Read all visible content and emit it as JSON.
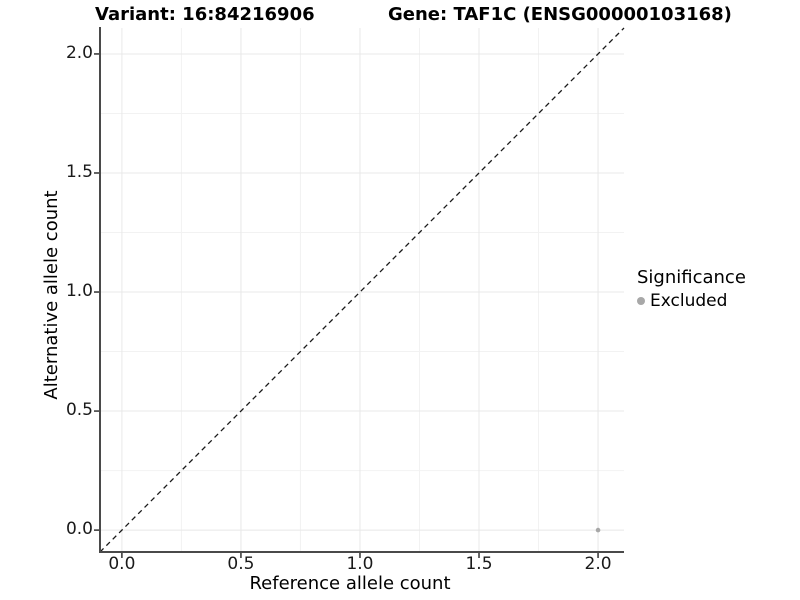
{
  "chart_data": {
    "type": "scatter",
    "title_left": "Variant: 16:84216906",
    "title_right": "Gene: TAF1C (ENSG00000103168)",
    "xlabel": "Reference allele count",
    "ylabel": "Alternative allele count",
    "xlim": [
      -0.092,
      2.109
    ],
    "ylim": [
      -0.092,
      2.109
    ],
    "x_ticks": [
      0,
      0.5,
      1,
      1.5,
      2
    ],
    "x_tick_labels": [
      "0.0",
      "0.5",
      "1.0",
      "1.5",
      "2.0"
    ],
    "y_ticks": [
      0,
      0.5,
      1,
      1.5,
      2
    ],
    "y_tick_labels": [
      "0.0",
      "0.5",
      "1.0",
      "1.5",
      "2.0"
    ],
    "x_minor_ticks": [
      0.25,
      0.75,
      1.25,
      1.75
    ],
    "y_minor_ticks": [
      0.25,
      0.75,
      1.25,
      1.75
    ],
    "grid": "major and minor, light grey, on white background",
    "identity_line": {
      "style": "dashed",
      "from_xy": [
        -0.092,
        -0.092
      ],
      "to_xy": [
        2.109,
        2.109
      ],
      "color": "#1a1a1a"
    },
    "series": [
      {
        "name": "Excluded",
        "color": "#a8a8a8",
        "points": [
          {
            "x": 2.0,
            "y": 0.0
          }
        ]
      }
    ],
    "legend": {
      "title": "Significance",
      "position": "right",
      "items": [
        {
          "label": "Excluded",
          "color": "#a8a8a8"
        }
      ]
    },
    "colors": {
      "grid_major": "#e8e8e8",
      "grid_minor": "#f2f2f2",
      "axis_line": "#4a4a4a",
      "tick_mark": "#222222",
      "background": "#ffffff"
    }
  }
}
